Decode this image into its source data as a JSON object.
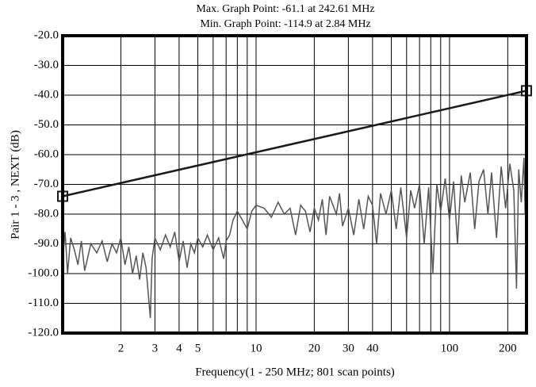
{
  "chart_data": {
    "type": "line",
    "title": "Max. Graph Point: -61.1 at 242.61 MHz",
    "subtitle": "Min. Graph Point: -114.9 at 2.84 MHz",
    "x_label": "Frequency(1 - 250 MHz; 801 scan points)",
    "y_label": "Pair 1 - 3 , NEXT (dB)",
    "x_scale": "log",
    "grid": true,
    "xlim": [
      1,
      250
    ],
    "ylim": [
      -120,
      -20
    ],
    "xticks": [
      2,
      3,
      4,
      5,
      10,
      20,
      30,
      40,
      100,
      200
    ],
    "minor_xticks": [
      6,
      7,
      8,
      9,
      50,
      60,
      70,
      80,
      90
    ],
    "yticks": [
      {
        "value": -20,
        "label": "-20.0"
      },
      {
        "value": -30,
        "label": "-30.0"
      },
      {
        "value": -40,
        "label": "-40.0"
      },
      {
        "value": -50,
        "label": "-50.0"
      },
      {
        "value": -60,
        "label": "-60.0"
      },
      {
        "value": -70,
        "label": "-70.0"
      },
      {
        "value": -80,
        "label": "-80.0"
      },
      {
        "value": -90,
        "label": "-90.0"
      },
      {
        "value": -100,
        "label": "-100.0"
      },
      {
        "value": -110,
        "label": "-110.0"
      },
      {
        "value": -120,
        "label": "-120.0"
      }
    ],
    "series": [
      {
        "color": "#555555",
        "x": [
          1,
          1.03,
          1.06,
          1.1,
          1.15,
          1.2,
          1.25,
          1.3,
          1.4,
          1.5,
          1.6,
          1.7,
          1.8,
          1.9,
          2.0,
          2.1,
          2.2,
          2.3,
          2.4,
          2.5,
          2.6,
          2.7,
          2.84,
          2.9,
          3.0,
          3.2,
          3.4,
          3.6,
          3.8,
          4.0,
          4.2,
          4.4,
          4.6,
          4.8,
          5.0,
          5.3,
          5.6,
          6.0,
          6.4,
          6.8,
          7.0,
          7.3,
          7.6,
          8.0,
          8.5,
          9.0,
          9.5,
          10,
          11,
          12,
          13,
          14,
          15,
          16,
          17,
          18,
          19,
          20,
          21,
          22,
          23,
          24,
          26,
          27,
          28,
          30,
          32,
          34,
          36,
          38,
          40,
          42,
          44,
          47,
          50,
          53,
          56,
          60,
          63,
          66,
          70,
          74,
          78,
          82,
          86,
          90,
          95,
          100,
          105,
          110,
          115,
          120,
          128,
          135,
          142,
          150,
          158,
          165,
          175,
          185,
          195,
          205,
          215,
          222,
          228,
          235,
          242.61,
          246,
          250
        ],
        "values": [
          -95,
          -86,
          -100,
          -88,
          -92,
          -97,
          -89,
          -99,
          -90,
          -93,
          -89,
          -96,
          -90,
          -93,
          -88,
          -97,
          -91,
          -100,
          -94,
          -102,
          -93,
          -98,
          -114.9,
          -95,
          -88,
          -92,
          -87,
          -91,
          -86,
          -96,
          -89,
          -98,
          -90,
          -93,
          -88,
          -91,
          -87,
          -92,
          -88,
          -95,
          -89,
          -87,
          -82,
          -79,
          -82,
          -85,
          -79,
          -77,
          -78,
          -81,
          -76,
          -80,
          -78,
          -87,
          -77,
          -79,
          -86,
          -78,
          -82,
          -75,
          -87,
          -74,
          -80,
          -73,
          -84,
          -78,
          -87,
          -75,
          -85,
          -74,
          -77,
          -90,
          -73,
          -80,
          -72,
          -85,
          -71,
          -88,
          -72,
          -78,
          -70,
          -90,
          -71,
          -100,
          -70,
          -79,
          -68,
          -82,
          -69,
          -90,
          -67,
          -76,
          -66,
          -85,
          -69,
          -65,
          -80,
          -66,
          -88,
          -64,
          -78,
          -63,
          -72,
          -105,
          -65,
          -76,
          -61.1,
          -80,
          -70
        ]
      },
      {
        "color": "#1a1a1a",
        "marker": "square",
        "x": [
          1,
          250
        ],
        "values": [
          -74,
          -38.5
        ]
      }
    ]
  }
}
